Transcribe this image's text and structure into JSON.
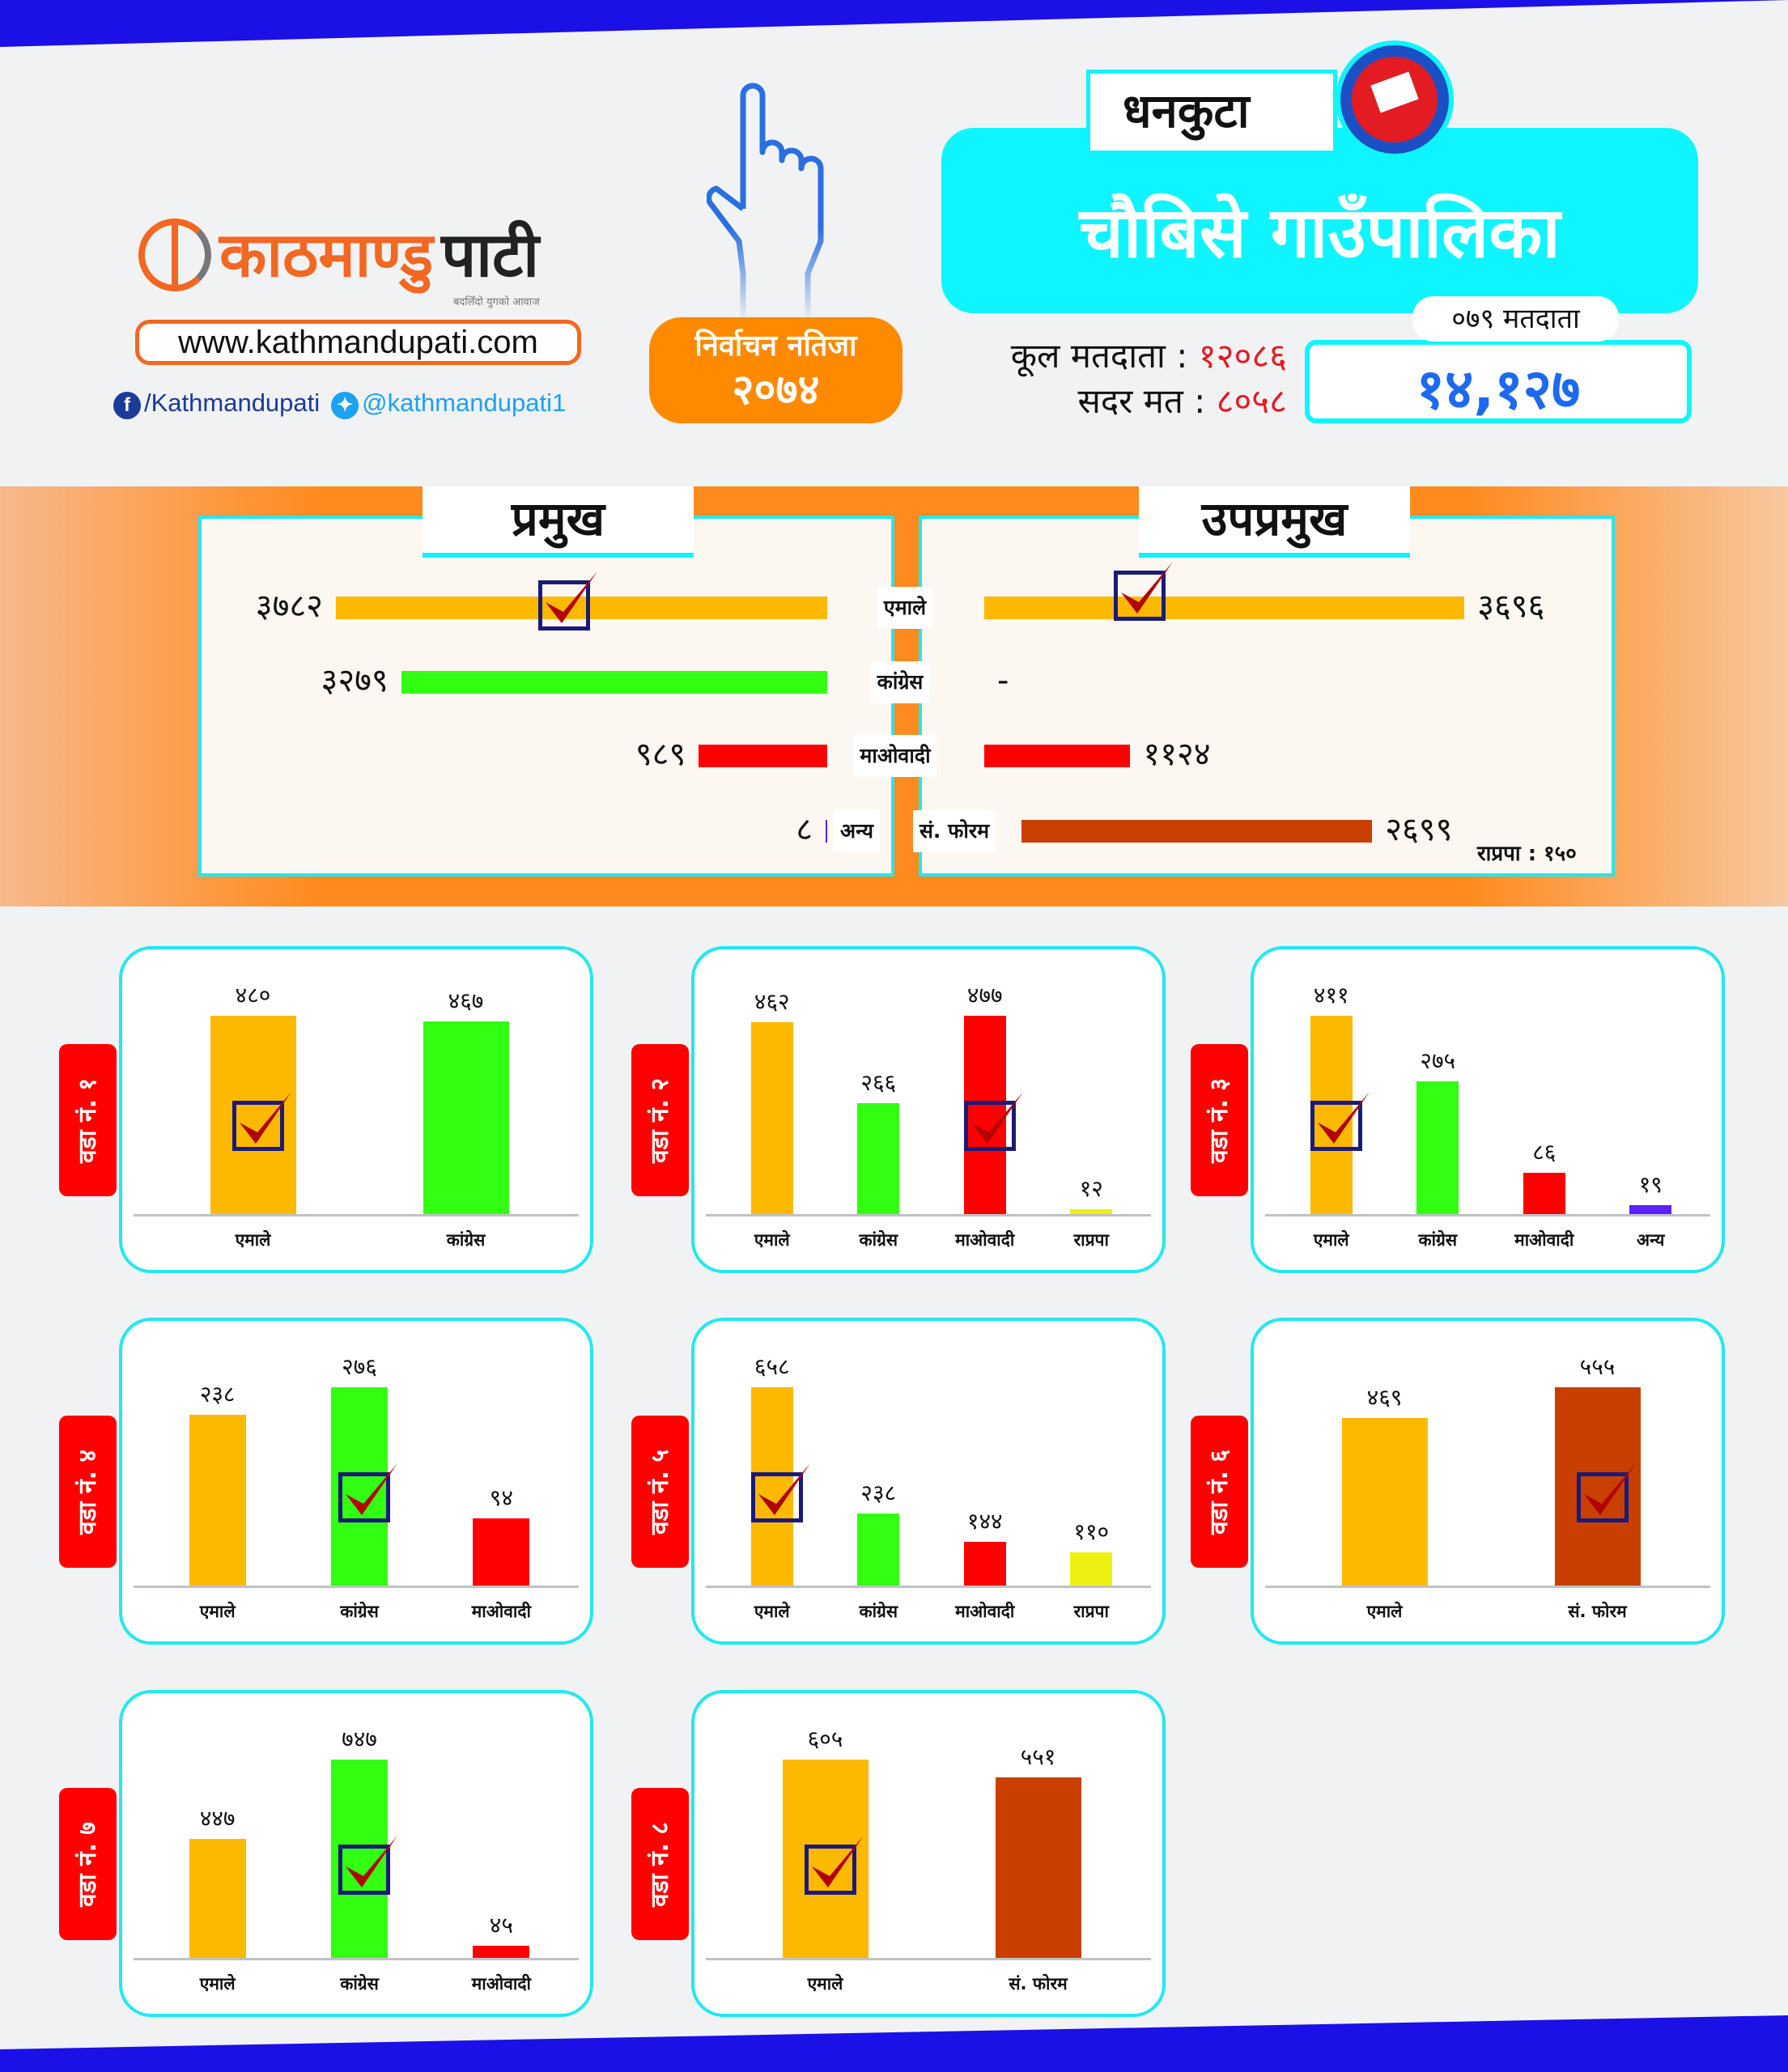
{
  "brand": {
    "name_part1": "काठमाण्डु",
    "name_part2": "पाटी",
    "tagline": "बदलिँदो युगको आवाज",
    "url": "www.kathmandupati.com",
    "facebook": "/Kathmandupati",
    "twitter": "@kathmandupati1"
  },
  "result_badge": {
    "line1": "निर्वाचन नतिजा",
    "year": "२०७४"
  },
  "district": "धनकुटा",
  "municipality": "चौबिसे गाउँपालिका",
  "voters": {
    "total_label": "कूल मतदाता :",
    "total": "१२०८६",
    "valid_label": "सदर मत :",
    "valid": "८०५८",
    "v079_label": "०७९ मतदाता",
    "v079": "१४,१२७"
  },
  "colors": {
    "uml": "#fdb900",
    "congress": "#33ff12",
    "maoist": "#ff0000",
    "rpp": "#eef012",
    "other": "#5a20ff",
    "forum": "#c93f00",
    "accent": "#0ff5ff"
  },
  "mayor": {
    "title": "प्रमुख",
    "rows": [
      {
        "party": "एमाले",
        "votes": 3782,
        "label": "३७८२",
        "color": "#fdb900",
        "winner": true
      },
      {
        "party": "कांग्रेस",
        "votes": 3279,
        "label": "३२७९",
        "color": "#33ff12",
        "winner": false
      },
      {
        "party": "माओवादी",
        "votes": 989,
        "label": "९८९",
        "color": "#ff0000",
        "winner": false
      },
      {
        "party": "अन्य",
        "votes": 8,
        "label": "८",
        "color": "#5a20ff",
        "winner": false
      }
    ]
  },
  "deputy": {
    "title": "उपप्रमुख",
    "rows": [
      {
        "party": "एमाले",
        "votes": 3696,
        "label": "३६९६",
        "color": "#fdb900",
        "winner": true
      },
      {
        "party": "कांग्रेस",
        "votes": 0,
        "label": "-",
        "color": "#33ff12",
        "winner": false
      },
      {
        "party": "माओवादी",
        "votes": 1124,
        "label": "११२४",
        "color": "#ff0000",
        "winner": false
      },
      {
        "party": "सं. फोरम",
        "votes": 2699,
        "label": "२६९९",
        "color": "#c93f00",
        "winner": false
      }
    ],
    "note": "राप्रपा : १५०"
  },
  "wards": [
    {
      "label": "वडा नं. १",
      "bars": [
        {
          "party": "एमाले",
          "v": 480,
          "t": "४८०",
          "c": "#fdb900",
          "w": true
        },
        {
          "party": "कांग्रेस",
          "v": 467,
          "t": "४६७",
          "c": "#33ff12"
        }
      ]
    },
    {
      "label": "वडा नं. २",
      "bars": [
        {
          "party": "एमाले",
          "v": 462,
          "t": "४६२",
          "c": "#fdb900"
        },
        {
          "party": "कांग्रेस",
          "v": 266,
          "t": "२६६",
          "c": "#33ff12"
        },
        {
          "party": "माओवादी",
          "v": 477,
          "t": "४७७",
          "c": "#ff0000",
          "w": true
        },
        {
          "party": "राप्रपा",
          "v": 12,
          "t": "१२",
          "c": "#eef012"
        }
      ]
    },
    {
      "label": "वडा नं. ३",
      "bars": [
        {
          "party": "एमाले",
          "v": 411,
          "t": "४११",
          "c": "#fdb900",
          "w": true
        },
        {
          "party": "कांग्रेस",
          "v": 275,
          "t": "२७५",
          "c": "#33ff12"
        },
        {
          "party": "माओवादी",
          "v": 86,
          "t": "८६",
          "c": "#ff0000"
        },
        {
          "party": "अन्य",
          "v": 19,
          "t": "१९",
          "c": "#5a20ff"
        }
      ]
    },
    {
      "label": "वडा नं. ४",
      "bars": [
        {
          "party": "एमाले",
          "v": 238,
          "t": "२३८",
          "c": "#fdb900"
        },
        {
          "party": "कांग्रेस",
          "v": 276,
          "t": "२७६",
          "c": "#33ff12",
          "w": true
        },
        {
          "party": "माओवादी",
          "v": 94,
          "t": "९४",
          "c": "#ff0000"
        }
      ]
    },
    {
      "label": "वडा नं. ५",
      "bars": [
        {
          "party": "एमाले",
          "v": 658,
          "t": "६५८",
          "c": "#fdb900",
          "w": true
        },
        {
          "party": "कांग्रेस",
          "v": 238,
          "t": "२३८",
          "c": "#33ff12"
        },
        {
          "party": "माओवादी",
          "v": 144,
          "t": "१४४",
          "c": "#ff0000"
        },
        {
          "party": "राप्रपा",
          "v": 110,
          "t": "११०",
          "c": "#eef012"
        }
      ]
    },
    {
      "label": "वडा नं. ६",
      "bars": [
        {
          "party": "एमाले",
          "v": 469,
          "t": "४६९",
          "c": "#fdb900"
        },
        {
          "party": "सं. फोरम",
          "v": 555,
          "t": "५५५",
          "c": "#c93f00",
          "w": true
        }
      ]
    },
    {
      "label": "वडा नं. ७",
      "bars": [
        {
          "party": "एमाले",
          "v": 447,
          "t": "४४७",
          "c": "#fdb900"
        },
        {
          "party": "कांग्रेस",
          "v": 747,
          "t": "७४७",
          "c": "#33ff12",
          "w": true
        },
        {
          "party": "माओवादी",
          "v": 45,
          "t": "४५",
          "c": "#ff0000"
        }
      ]
    },
    {
      "label": "वडा नं. ८",
      "bars": [
        {
          "party": "एमाले",
          "v": 605,
          "t": "६०५",
          "c": "#fdb900",
          "w": true
        },
        {
          "party": "सं. फोरम",
          "v": 551,
          "t": "५५१",
          "c": "#c93f00"
        }
      ]
    }
  ]
}
